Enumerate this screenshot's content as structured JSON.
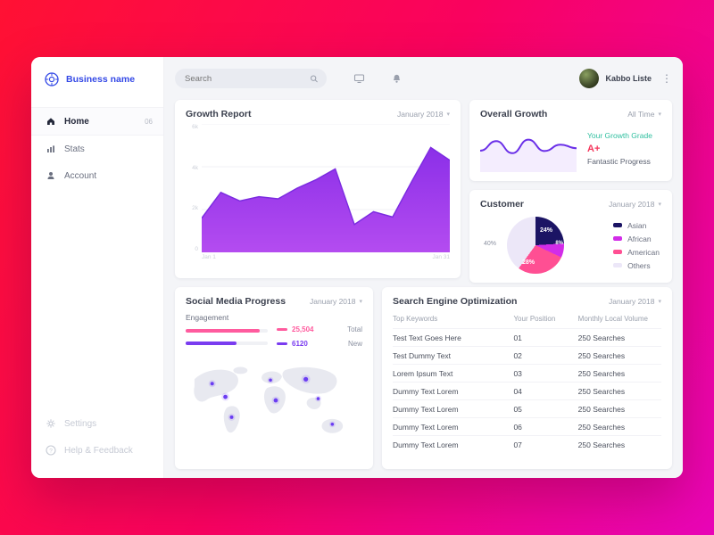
{
  "sidebar": {
    "brand": "Business name",
    "items": [
      {
        "label": "Home",
        "badge": "06"
      },
      {
        "label": "Stats",
        "badge": ""
      },
      {
        "label": "Account",
        "badge": ""
      }
    ],
    "footer": [
      {
        "label": "Settings"
      },
      {
        "label": "Help & Feedback"
      }
    ]
  },
  "topbar": {
    "search_placeholder": "Search",
    "user_name": "Kabbo Liste"
  },
  "growth_report": {
    "title": "Growth Report",
    "period": "January 2018"
  },
  "overall_growth": {
    "title": "Overall Growth",
    "period": "All Time",
    "grade_label": "Your Growth Grade",
    "grade": "A+",
    "note": "Fantastic Progress"
  },
  "customer": {
    "title": "Customer",
    "period": "January 2018",
    "percentages": {
      "asian": "24%",
      "african": "8%",
      "american": "28%",
      "others": "40%"
    },
    "legend": [
      {
        "label": "Asian",
        "color": "#1b1464"
      },
      {
        "label": "African",
        "color": "#d22ce8"
      },
      {
        "label": "American",
        "color": "#ff4f93"
      },
      {
        "label": "Others",
        "color": "#ece7f8"
      }
    ]
  },
  "social": {
    "title": "Social Media Progress",
    "period": "January 2018",
    "engagement_label": "Engagement",
    "stats": [
      {
        "value": "25,504",
        "label": "Total",
        "color": "#ff5b9e",
        "pct": 90
      },
      {
        "value": "6120",
        "label": "New",
        "color": "#7a3cf0",
        "pct": 62
      }
    ]
  },
  "seo": {
    "title": "Search Engine Optimization",
    "period": "January 2018",
    "columns": [
      "Top Keywords",
      "Your Position",
      "Monthly Local Volume"
    ],
    "rows": [
      {
        "keyword": "Test Text Goes Here",
        "position": "01",
        "volume": "250 Searches"
      },
      {
        "keyword": "Test Dummy Text",
        "position": "02",
        "volume": "250 Searches"
      },
      {
        "keyword": "Lorem Ipsum Text",
        "position": "03",
        "volume": "250 Searches"
      },
      {
        "keyword": "Dummy Text Lorem",
        "position": "04",
        "volume": "250 Searches"
      },
      {
        "keyword": "Dummy Text Lorem",
        "position": "05",
        "volume": "250 Searches"
      },
      {
        "keyword": "Dummy Text Lorem",
        "position": "06",
        "volume": "250 Searches"
      },
      {
        "keyword": "Dummy Text Lorem",
        "position": "07",
        "volume": "250 Searches"
      }
    ]
  },
  "chart_data": [
    {
      "type": "area",
      "title": "Growth Report",
      "x_ticks": [
        "Jan 1",
        "Jan 31"
      ],
      "y_ticks": [
        "6k",
        "4k",
        "2k",
        "0"
      ],
      "ylim": [
        0,
        6000
      ],
      "values": [
        1600,
        2800,
        2400,
        2600,
        2500,
        3000,
        3400,
        3900,
        1300,
        1900,
        1650,
        3300,
        4900,
        4300
      ],
      "colors": {
        "top": "#8b2fe8",
        "bottom": "#b44cf0",
        "stroke": "#7b2be0"
      }
    },
    {
      "type": "line",
      "title": "Overall Growth",
      "values": [
        45,
        72,
        38,
        76,
        44,
        62,
        52
      ],
      "ylim": [
        0,
        100
      ],
      "colors": {
        "stroke": "#6a2fe8"
      }
    },
    {
      "type": "pie",
      "title": "Customer",
      "labels": [
        "Asian",
        "African",
        "American",
        "Others"
      ],
      "values": [
        24,
        8,
        28,
        40
      ],
      "colors": [
        "#1b1464",
        "#d22ce8",
        "#ff4f93",
        "#ece7f8"
      ]
    },
    {
      "type": "bar",
      "title": "Social Media Engagement",
      "categories": [
        "Total",
        "New"
      ],
      "values": [
        25504,
        6120
      ]
    }
  ]
}
